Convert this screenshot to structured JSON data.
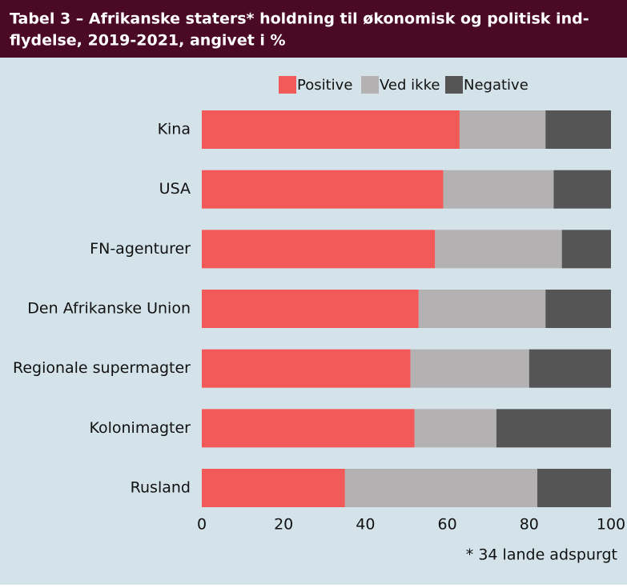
{
  "chart_data": {
    "type": "stacked-barh",
    "title": [
      "Tabel 3 – Afrikanske staters* holdning til økonomisk og politisk ind-",
      "flydelse, 2019-2021, angivet i %"
    ],
    "categories": [
      "Kina",
      "USA",
      "FN-agenturer",
      "Den Afrikanske Union",
      "Regionale supermagter",
      "Kolonimagter",
      "Rusland"
    ],
    "series": [
      {
        "name": "Positive",
        "color": "#f25a5a",
        "values": [
          63,
          59,
          57,
          53,
          51,
          52,
          35
        ]
      },
      {
        "name": "Ved ikke",
        "color": "#b3b1b1",
        "values": [
          21,
          27,
          31,
          31,
          29,
          20,
          47
        ]
      },
      {
        "name": "Negative",
        "color": "#555555",
        "values": [
          16,
          14,
          12,
          16,
          20,
          28,
          18
        ]
      }
    ],
    "xlim": [
      0,
      100
    ],
    "xticks": [
      0,
      20,
      40,
      60,
      80,
      100
    ],
    "legend": "top",
    "note": "* 34 lande adspurgt"
  }
}
